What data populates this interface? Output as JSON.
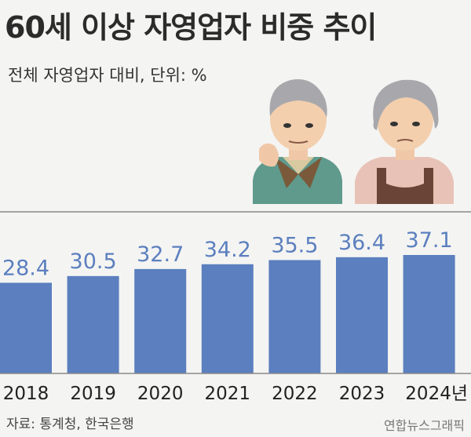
{
  "title": "60세 이상 자영업자 비중 추이",
  "subtitle": "전체 자영업자 대비, 단위: %",
  "source": "자료: 통계청, 한국은행",
  "credit": "연합뉴스그래픽",
  "colors": {
    "bar": "#5b7fbf",
    "value_label": "#5b7fbf",
    "background": "#f4f4f2",
    "line": "#8a8a8a"
  },
  "chart_data": {
    "type": "bar",
    "categories": [
      "2018",
      "2019",
      "2020",
      "2021",
      "2022",
      "2023",
      "2024년"
    ],
    "values": [
      28.4,
      30.5,
      32.7,
      34.2,
      35.5,
      36.4,
      37.1
    ],
    "value_labels": [
      "28.4",
      "30.5",
      "32.7",
      "34.2",
      "35.5",
      "36.4",
      "37.1"
    ],
    "ylim": [
      0,
      37.1
    ],
    "grid": false,
    "legend": "none"
  }
}
